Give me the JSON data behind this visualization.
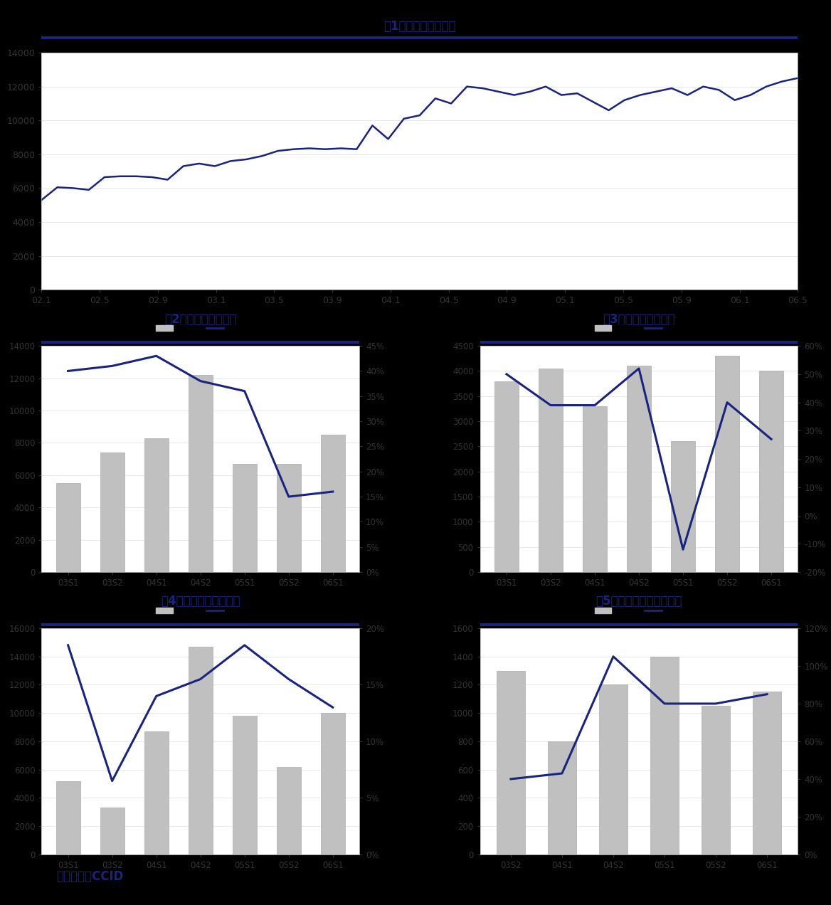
{
  "title1": "图1：聚丙烯价格走势",
  "title2": "图2：光膜半年度数据",
  "title3": "图3：镀膜半年度数据",
  "title4": "图4：电容器半年度数据",
  "title5": "图5：再生粒子半年度数据",
  "footer": "数据来源：CCID",
  "title_color": "#1a237e",
  "line_color": "#1a237e",
  "bar_color": "#c0c0c0",
  "bar_edge": "#a0a0a0",
  "divider_color": "#1a237e",
  "footer_color": "#1a237e",
  "chart1_x_labels": [
    "02.1",
    "02.5",
    "02.9",
    "03.1",
    "03.5",
    "03.9",
    "04.1",
    "04.5",
    "04.9",
    "05.1",
    "05.5",
    "05.9",
    "06.1",
    "06.5"
  ],
  "chart1_y": [
    5300,
    6050,
    6000,
    5900,
    6650,
    6700,
    6700,
    6650,
    6500,
    7300,
    7450,
    7300,
    7600,
    7700,
    7900,
    8200,
    8300,
    8350,
    8300,
    8350,
    8300,
    9700,
    8900,
    10100,
    10300,
    11300,
    11000,
    12000,
    11900,
    11700,
    11500,
    11700,
    12000,
    11500,
    11600,
    11100,
    10600,
    11200,
    11500,
    11700,
    11900,
    11500,
    12000,
    11800,
    11200,
    11500,
    12000,
    12300,
    12500
  ],
  "chart2_categories": [
    "03S1",
    "03S2",
    "04S1",
    "04S2",
    "05S1",
    "05S2",
    "06S1"
  ],
  "chart2_bars": [
    5500,
    7400,
    8300,
    12200,
    6700,
    6700,
    8500
  ],
  "chart2_line": [
    0.4,
    0.41,
    0.43,
    0.38,
    0.36,
    0.15,
    0.16
  ],
  "chart2_ylim": [
    0,
    14000
  ],
  "chart2_yticks": [
    0,
    2000,
    4000,
    6000,
    8000,
    10000,
    12000,
    14000
  ],
  "chart2_y2lim": [
    0,
    0.45
  ],
  "chart2_y2ticks": [
    0.0,
    0.05,
    0.1,
    0.15,
    0.2,
    0.25,
    0.3,
    0.35,
    0.4,
    0.45
  ],
  "chart3_categories": [
    "03S1",
    "03S2",
    "04S1",
    "04S2",
    "05S1",
    "05S2",
    "06S1"
  ],
  "chart3_bars": [
    3800,
    4050,
    3300,
    4100,
    2600,
    4300,
    4000
  ],
  "chart3_line": [
    0.5,
    0.39,
    0.39,
    0.52,
    -0.12,
    0.4,
    0.27
  ],
  "chart3_ylim": [
    0,
    4500
  ],
  "chart3_yticks": [
    0,
    500,
    1000,
    1500,
    2000,
    2500,
    3000,
    3500,
    4000,
    4500
  ],
  "chart3_y2lim": [
    -0.2,
    0.6
  ],
  "chart3_y2ticks": [
    -0.2,
    -0.1,
    0.0,
    0.1,
    0.2,
    0.3,
    0.4,
    0.5,
    0.6
  ],
  "chart4_categories": [
    "03S1",
    "03S2",
    "04S1",
    "04S2",
    "05S1",
    "05S2",
    "06S1"
  ],
  "chart4_bars": [
    5200,
    3300,
    8700,
    14700,
    9800,
    6200,
    10000
  ],
  "chart4_line": [
    0.185,
    0.065,
    0.14,
    0.155,
    0.185,
    0.155,
    0.13
  ],
  "chart4_ylim": [
    0,
    16000
  ],
  "chart4_yticks": [
    0,
    2000,
    4000,
    6000,
    8000,
    10000,
    12000,
    14000,
    16000
  ],
  "chart4_y2lim": [
    0,
    0.2
  ],
  "chart4_y2ticks": [
    0.0,
    0.05,
    0.1,
    0.15,
    0.2
  ],
  "chart5_categories": [
    "03S2",
    "04S1",
    "04S2",
    "05S1",
    "05S2",
    "06S1"
  ],
  "chart5_bars": [
    1300,
    800,
    1200,
    1400,
    1050,
    1150
  ],
  "chart5_line": [
    0.4,
    0.43,
    1.05,
    0.8,
    0.8,
    0.85
  ],
  "chart5_ylim": [
    0,
    1600
  ],
  "chart5_yticks": [
    0,
    200,
    400,
    600,
    800,
    1000,
    1200,
    1400,
    1600
  ],
  "chart5_y2lim": [
    0,
    1.2
  ],
  "chart5_y2ticks": [
    0.0,
    0.2,
    0.4,
    0.6,
    0.8,
    1.0,
    1.2
  ]
}
